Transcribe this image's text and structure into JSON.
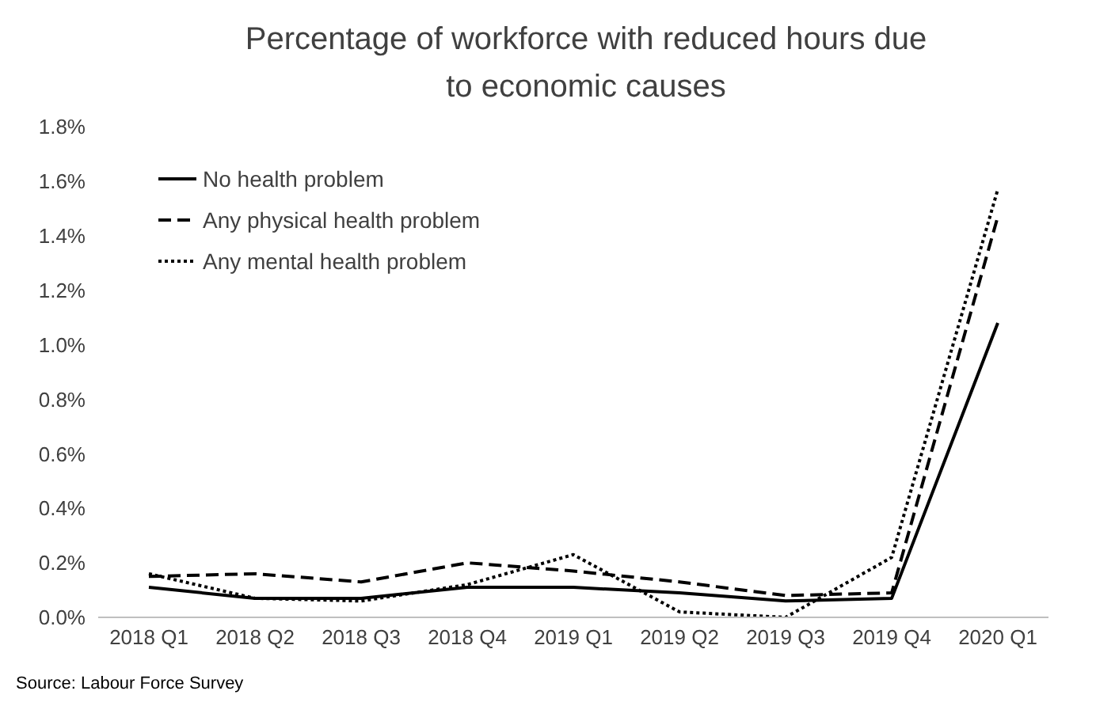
{
  "chart_data": {
    "type": "line",
    "title": "Percentage of workforce with reduced hours due to economic causes",
    "categories": [
      "2018 Q1",
      "2018 Q2",
      "2018 Q3",
      "2018 Q4",
      "2019 Q1",
      "2019 Q2",
      "2019 Q3",
      "2019 Q4",
      "2020 Q1"
    ],
    "series": [
      {
        "name": "No health problem",
        "color": "#000000",
        "line_style": "solid",
        "values": [
          0.11,
          0.07,
          0.07,
          0.11,
          0.11,
          0.09,
          0.06,
          0.07,
          1.08
        ]
      },
      {
        "name": "Any physical health problem",
        "color": "#000000",
        "line_style": "dashed",
        "values": [
          0.15,
          0.16,
          0.13,
          0.2,
          0.17,
          0.13,
          0.08,
          0.09,
          1.47
        ]
      },
      {
        "name": "Any mental health problem",
        "color": "#000000",
        "line_style": "dotted",
        "values": [
          0.16,
          0.07,
          0.06,
          0.12,
          0.23,
          0.02,
          0.0,
          0.22,
          1.57
        ]
      }
    ],
    "ylim": [
      0,
      1.8
    ],
    "yticks": [
      {
        "value": 0,
        "label": "0.0%"
      },
      {
        "value": 0.2,
        "label": "0.2%"
      },
      {
        "value": 0.4,
        "label": "0.4%"
      },
      {
        "value": 0.6,
        "label": "0.6%"
      },
      {
        "value": 0.8,
        "label": "0.8%"
      },
      {
        "value": 1.0,
        "label": "1.0%"
      },
      {
        "value": 1.2,
        "label": "1.2%"
      },
      {
        "value": 1.4,
        "label": "1.4%"
      },
      {
        "value": 1.6,
        "label": "1.6%"
      },
      {
        "value": 1.8,
        "label": "1.8%"
      }
    ],
    "legend": "top left",
    "marker": "none",
    "annotations": [
      "Source: Labour Force Survey"
    ]
  }
}
